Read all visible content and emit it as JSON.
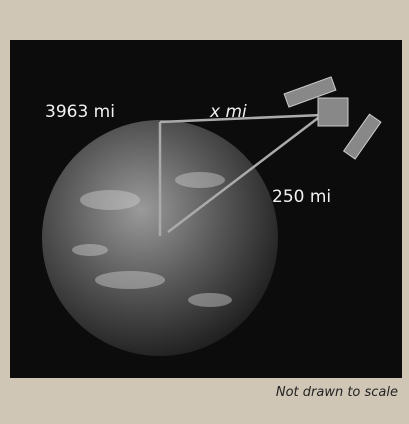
{
  "labels": {
    "radius": "3963 mi",
    "distance": "x mi",
    "altitude": "250 mi"
  },
  "caption": "Not drawn to scale"
}
